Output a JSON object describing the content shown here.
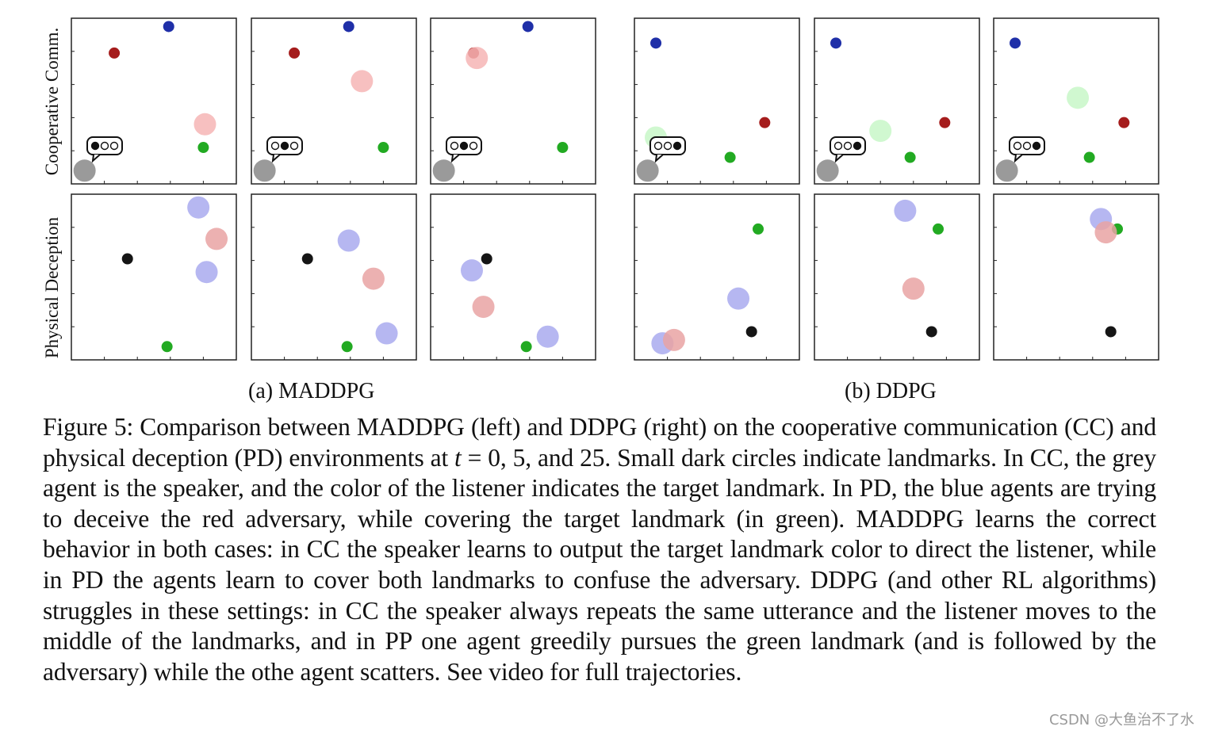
{
  "row_labels": {
    "cc": "Cooperative Comm.",
    "pd": "Physical Deception"
  },
  "subfigures": {
    "a": "(a) MADDPG",
    "b": "(b) DDPG"
  },
  "caption": {
    "prefix": "Figure 5: Comparison between MADDPG (left) and DDPG (right) on the cooperative communication (CC) and physical deception (PD) environments at ",
    "var": "t",
    "math_rest": " = 0, 5, and 25.",
    "suffix": " Small dark circles indicate landmarks. In CC, the grey agent is the speaker, and the color of the listener indicates the target landmark. In PD, the blue agents are trying to deceive the red adversary, while covering the target landmark (in green). MADDPG learns the correct behavior in both cases: in CC the speaker learns to output the target landmark color to direct the listener, while in PD the agents learn to cover both landmarks to confuse the adversary. DDPG (and other RL algorithms) struggles in these settings: in CC the speaker always repeats the same utterance and the listener moves to the middle of the landmarks, and in PP one agent greedily pursues the green landmark (and is followed by the adversary) while the othe agent scatters. See video for full trajectories."
  },
  "watermark": "CSDN @大鱼治不了水",
  "colors": {
    "landmark_blue": "#1f2fa8",
    "landmark_red": "#a51c1c",
    "landmark_green": "#22aa22",
    "landmark_black": "#151515",
    "speaker_grey": "#9a9a9a",
    "listener_red": "#f6b5b5",
    "listener_green": "#c8f7c8",
    "agent_blue": "#a9aaee",
    "adversary_red": "#e9a3a3"
  },
  "chart_data": [
    {
      "type": "scatter",
      "group": "MADDPG",
      "env": "Cooperative Comm.",
      "timestep": 0,
      "xlim": [
        0,
        1
      ],
      "ylim": [
        0,
        1
      ],
      "points": [
        {
          "role": "landmark-blue",
          "x": 0.59,
          "y": 0.95
        },
        {
          "role": "landmark-red",
          "x": 0.26,
          "y": 0.79
        },
        {
          "role": "landmark-green",
          "x": 0.8,
          "y": 0.22
        },
        {
          "role": "listener",
          "color": "red",
          "x": 0.81,
          "y": 0.36
        },
        {
          "role": "speaker",
          "x": 0.08,
          "y": 0.08
        }
      ],
      "utterance": [
        1,
        0,
        0
      ]
    },
    {
      "type": "scatter",
      "group": "MADDPG",
      "env": "Cooperative Comm.",
      "timestep": 5,
      "xlim": [
        0,
        1
      ],
      "ylim": [
        0,
        1
      ],
      "points": [
        {
          "role": "landmark-blue",
          "x": 0.59,
          "y": 0.95
        },
        {
          "role": "landmark-red",
          "x": 0.26,
          "y": 0.79
        },
        {
          "role": "landmark-green",
          "x": 0.8,
          "y": 0.22
        },
        {
          "role": "listener",
          "color": "red",
          "x": 0.67,
          "y": 0.62
        },
        {
          "role": "speaker",
          "x": 0.08,
          "y": 0.08
        }
      ],
      "utterance": [
        0,
        1,
        0
      ]
    },
    {
      "type": "scatter",
      "group": "MADDPG",
      "env": "Cooperative Comm.",
      "timestep": 25,
      "xlim": [
        0,
        1
      ],
      "ylim": [
        0,
        1
      ],
      "points": [
        {
          "role": "landmark-blue",
          "x": 0.59,
          "y": 0.95
        },
        {
          "role": "landmark-red",
          "x": 0.26,
          "y": 0.79
        },
        {
          "role": "landmark-green",
          "x": 0.8,
          "y": 0.22
        },
        {
          "role": "listener",
          "color": "red",
          "x": 0.28,
          "y": 0.76
        },
        {
          "role": "speaker",
          "x": 0.08,
          "y": 0.08
        }
      ],
      "utterance": [
        0,
        1,
        0
      ]
    },
    {
      "type": "scatter",
      "group": "DDPG",
      "env": "Cooperative Comm.",
      "timestep": 0,
      "xlim": [
        0,
        1
      ],
      "ylim": [
        0,
        1
      ],
      "points": [
        {
          "role": "landmark-blue",
          "x": 0.13,
          "y": 0.85
        },
        {
          "role": "landmark-red",
          "x": 0.79,
          "y": 0.37
        },
        {
          "role": "landmark-green",
          "x": 0.58,
          "y": 0.16
        },
        {
          "role": "listener",
          "color": "green",
          "x": 0.13,
          "y": 0.28
        },
        {
          "role": "speaker",
          "x": 0.08,
          "y": 0.08
        }
      ],
      "utterance": [
        0,
        0,
        1
      ]
    },
    {
      "type": "scatter",
      "group": "DDPG",
      "env": "Cooperative Comm.",
      "timestep": 5,
      "xlim": [
        0,
        1
      ],
      "ylim": [
        0,
        1
      ],
      "points": [
        {
          "role": "landmark-blue",
          "x": 0.13,
          "y": 0.85
        },
        {
          "role": "landmark-red",
          "x": 0.79,
          "y": 0.37
        },
        {
          "role": "landmark-green",
          "x": 0.58,
          "y": 0.16
        },
        {
          "role": "listener",
          "color": "green",
          "x": 0.4,
          "y": 0.32
        },
        {
          "role": "speaker",
          "x": 0.08,
          "y": 0.08
        }
      ],
      "utterance": [
        0,
        0,
        1
      ]
    },
    {
      "type": "scatter",
      "group": "DDPG",
      "env": "Cooperative Comm.",
      "timestep": 25,
      "xlim": [
        0,
        1
      ],
      "ylim": [
        0,
        1
      ],
      "points": [
        {
          "role": "landmark-blue",
          "x": 0.13,
          "y": 0.85
        },
        {
          "role": "landmark-red",
          "x": 0.79,
          "y": 0.37
        },
        {
          "role": "landmark-green",
          "x": 0.58,
          "y": 0.16
        },
        {
          "role": "listener",
          "color": "green",
          "x": 0.51,
          "y": 0.52
        },
        {
          "role": "speaker",
          "x": 0.08,
          "y": 0.08
        }
      ],
      "utterance": [
        0,
        0,
        1
      ]
    },
    {
      "type": "scatter",
      "group": "MADDPG",
      "env": "Physical Deception",
      "timestep": 0,
      "xlim": [
        0,
        1
      ],
      "ylim": [
        0,
        1
      ],
      "points": [
        {
          "role": "landmark-black",
          "x": 0.34,
          "y": 0.61
        },
        {
          "role": "landmark-green",
          "x": 0.58,
          "y": 0.08
        },
        {
          "role": "agent-blue",
          "x": 0.77,
          "y": 0.92
        },
        {
          "role": "agent-blue",
          "x": 0.82,
          "y": 0.53
        },
        {
          "role": "adversary-red",
          "x": 0.88,
          "y": 0.73
        }
      ]
    },
    {
      "type": "scatter",
      "group": "MADDPG",
      "env": "Physical Deception",
      "timestep": 5,
      "xlim": [
        0,
        1
      ],
      "ylim": [
        0,
        1
      ],
      "points": [
        {
          "role": "landmark-black",
          "x": 0.34,
          "y": 0.61
        },
        {
          "role": "landmark-green",
          "x": 0.58,
          "y": 0.08
        },
        {
          "role": "agent-blue",
          "x": 0.59,
          "y": 0.72
        },
        {
          "role": "agent-blue",
          "x": 0.82,
          "y": 0.16
        },
        {
          "role": "adversary-red",
          "x": 0.74,
          "y": 0.49
        }
      ]
    },
    {
      "type": "scatter",
      "group": "MADDPG",
      "env": "Physical Deception",
      "timestep": 25,
      "xlim": [
        0,
        1
      ],
      "ylim": [
        0,
        1
      ],
      "points": [
        {
          "role": "landmark-black",
          "x": 0.34,
          "y": 0.61
        },
        {
          "role": "landmark-green",
          "x": 0.58,
          "y": 0.08
        },
        {
          "role": "agent-blue",
          "x": 0.25,
          "y": 0.54
        },
        {
          "role": "agent-blue",
          "x": 0.71,
          "y": 0.14
        },
        {
          "role": "adversary-red",
          "x": 0.32,
          "y": 0.32
        }
      ]
    },
    {
      "type": "scatter",
      "group": "DDPG",
      "env": "Physical Deception",
      "timestep": 0,
      "xlim": [
        0,
        1
      ],
      "ylim": [
        0,
        1
      ],
      "points": [
        {
          "role": "landmark-green",
          "x": 0.75,
          "y": 0.79
        },
        {
          "role": "landmark-black",
          "x": 0.71,
          "y": 0.17
        },
        {
          "role": "agent-blue",
          "x": 0.63,
          "y": 0.37
        },
        {
          "role": "agent-blue",
          "x": 0.17,
          "y": 0.1
        },
        {
          "role": "adversary-red",
          "x": 0.24,
          "y": 0.12
        }
      ]
    },
    {
      "type": "scatter",
      "group": "DDPG",
      "env": "Physical Deception",
      "timestep": 5,
      "xlim": [
        0,
        1
      ],
      "ylim": [
        0,
        1
      ],
      "points": [
        {
          "role": "landmark-green",
          "x": 0.75,
          "y": 0.79
        },
        {
          "role": "landmark-black",
          "x": 0.71,
          "y": 0.17
        },
        {
          "role": "agent-blue",
          "x": 0.55,
          "y": 0.9
        },
        {
          "role": "adversary-red",
          "x": 0.6,
          "y": 0.43
        }
      ]
    },
    {
      "type": "scatter",
      "group": "DDPG",
      "env": "Physical Deception",
      "timestep": 25,
      "xlim": [
        0,
        1
      ],
      "ylim": [
        0,
        1
      ],
      "points": [
        {
          "role": "landmark-green",
          "x": 0.75,
          "y": 0.79
        },
        {
          "role": "landmark-black",
          "x": 0.71,
          "y": 0.17
        },
        {
          "role": "agent-blue",
          "x": 0.65,
          "y": 0.85
        },
        {
          "role": "adversary-red",
          "x": 0.68,
          "y": 0.77
        }
      ]
    }
  ]
}
